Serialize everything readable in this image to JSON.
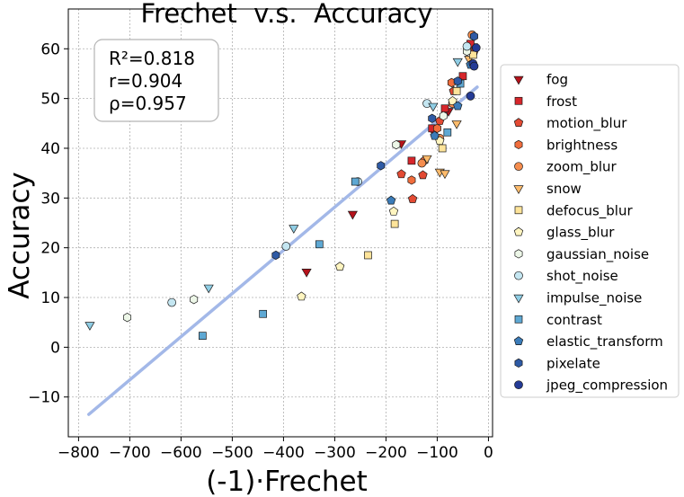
{
  "chart_data": {
    "type": "scatter",
    "title": "Frechet  v.s.  Accuracy",
    "xlabel": "(-1)·Frechet",
    "ylabel": "Accuracy",
    "xlim": [
      -820,
      8
    ],
    "ylim": [
      -18,
      68
    ],
    "xticks": [
      -800,
      -700,
      -600,
      -500,
      -400,
      -300,
      -200,
      -100,
      0
    ],
    "yticks": [
      -10,
      0,
      10,
      20,
      30,
      40,
      50,
      60
    ],
    "xtick_labels": [
      "−800",
      "−700",
      "−600",
      "−500",
      "−400",
      "−300",
      "−200",
      "−100",
      "0"
    ],
    "ytick_labels": [
      "−10",
      "0",
      "10",
      "20",
      "30",
      "40",
      "50",
      "60"
    ],
    "grid": true,
    "stats": [
      "R²=0.818",
      "r=0.904",
      "ρ=0.957"
    ],
    "fit_line": {
      "x": [
        -780,
        -22
      ],
      "y": [
        -13.5,
        52.3
      ],
      "color": "#a3b8e8"
    },
    "legend_position": "right, outside",
    "series": [
      {
        "name": "fog",
        "marker": "triangle-down",
        "color": "#b5121b",
        "points": [
          [
            -355,
            15.2
          ],
          [
            -265,
            26.8
          ],
          [
            -170,
            41.0
          ],
          [
            -108,
            43.5
          ],
          [
            -78,
            47.5
          ],
          [
            -30,
            60.5
          ]
        ]
      },
      {
        "name": "frost",
        "marker": "square",
        "color": "#d7262b",
        "points": [
          [
            -150,
            37.5
          ],
          [
            -110,
            44.0
          ],
          [
            -85,
            48.0
          ],
          [
            -50,
            54.5
          ],
          [
            -35,
            61.0
          ]
        ]
      },
      {
        "name": "motion_blur",
        "marker": "pentagon",
        "color": "#e34a33",
        "points": [
          [
            -170,
            34.8
          ],
          [
            -148,
            29.8
          ],
          [
            -128,
            34.6
          ],
          [
            -95,
            45.5
          ],
          [
            -68,
            51.5
          ],
          [
            -28,
            59.5
          ]
        ]
      },
      {
        "name": "brightness",
        "marker": "hexagon",
        "color": "#f16d3c",
        "points": [
          [
            -150,
            33.6
          ],
          [
            -125,
            37.5
          ],
          [
            -100,
            44.0
          ],
          [
            -72,
            53.2
          ],
          [
            -40,
            59.8
          ]
        ]
      },
      {
        "name": "zoom_blur",
        "marker": "circle",
        "color": "#f58d4e",
        "points": [
          [
            -130,
            37.0
          ],
          [
            -95,
            42.0
          ],
          [
            -70,
            49.0
          ],
          [
            -32,
            62.8
          ]
        ]
      },
      {
        "name": "snow",
        "marker": "triangle-down",
        "color": "#fdbb6c",
        "points": [
          [
            -120,
            38.0
          ],
          [
            -95,
            35.3
          ],
          [
            -85,
            35.0
          ],
          [
            -62,
            45.0
          ],
          [
            -38,
            58.0
          ]
        ]
      },
      {
        "name": "defocus_blur",
        "marker": "square",
        "color": "#fee49a",
        "points": [
          [
            -235,
            18.5
          ],
          [
            -183,
            24.8
          ],
          [
            -90,
            40.0
          ],
          [
            -62,
            51.5
          ],
          [
            -30,
            58.8
          ]
        ]
      },
      {
        "name": "glass_blur",
        "marker": "pentagon",
        "color": "#fff5c0",
        "points": [
          [
            -365,
            10.2
          ],
          [
            -290,
            16.2
          ],
          [
            -185,
            27.3
          ],
          [
            -95,
            41.5
          ],
          [
            -70,
            49.5
          ]
        ]
      },
      {
        "name": "gaussian_noise",
        "marker": "hexagon",
        "color": "#edf7e8",
        "points": [
          [
            -705,
            6.0
          ],
          [
            -575,
            9.6
          ],
          [
            -180,
            40.7
          ],
          [
            -88,
            46.5
          ],
          [
            -42,
            59.5
          ]
        ]
      },
      {
        "name": "shot_noise",
        "marker": "circle",
        "color": "#c4e6f1",
        "points": [
          [
            -618,
            9.0
          ],
          [
            -395,
            20.3
          ],
          [
            -255,
            33.3
          ],
          [
            -120,
            49.0
          ],
          [
            -42,
            60.5
          ]
        ]
      },
      {
        "name": "impulse_noise",
        "marker": "triangle-down",
        "color": "#8fcde4",
        "points": [
          [
            -778,
            4.5
          ],
          [
            -546,
            12.0
          ],
          [
            -380,
            24.0
          ],
          [
            -108,
            48.5
          ],
          [
            -60,
            57.5
          ]
        ]
      },
      {
        "name": "contrast",
        "marker": "square",
        "color": "#5ea8d3",
        "points": [
          [
            -558,
            2.3
          ],
          [
            -440,
            6.7
          ],
          [
            -330,
            20.7
          ],
          [
            -260,
            33.3
          ],
          [
            -80,
            43.2
          ],
          [
            -55,
            53.0
          ]
        ]
      },
      {
        "name": "elastic_transform",
        "marker": "pentagon",
        "color": "#3b7cb9",
        "points": [
          [
            -190,
            29.5
          ],
          [
            -105,
            42.5
          ],
          [
            -60,
            48.5
          ],
          [
            -35,
            56.8
          ]
        ]
      },
      {
        "name": "pixelate",
        "marker": "hexagon",
        "color": "#2e5aa5",
        "points": [
          [
            -415,
            18.5
          ],
          [
            -210,
            36.5
          ],
          [
            -110,
            46.0
          ],
          [
            -60,
            53.5
          ],
          [
            -28,
            62.5
          ]
        ]
      },
      {
        "name": "jpeg_compression",
        "marker": "circle",
        "color": "#243b96",
        "points": [
          [
            -35,
            50.5
          ],
          [
            -30,
            57.0
          ],
          [
            -28,
            56.5
          ],
          [
            -24,
            60.2
          ]
        ]
      }
    ]
  }
}
